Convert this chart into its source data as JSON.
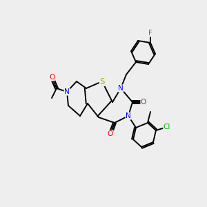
{
  "bg_color": "#eeeeee",
  "atom_colors": {
    "N": "#0000ff",
    "O": "#ff0000",
    "S": "#aaaa00",
    "Cl": "#00bb00",
    "F": "#ff00ff",
    "C": "#000000"
  },
  "lw": 1.4,
  "fs": 7.5
}
